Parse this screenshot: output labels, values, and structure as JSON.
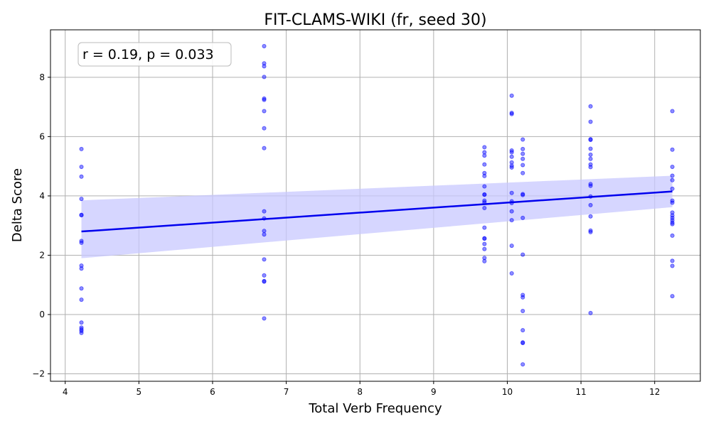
{
  "chart_data": {
    "type": "scatter",
    "title": "FIT-CLAMS-WIKI (fr, seed 30)",
    "xlabel": "Total Verb Frequency",
    "ylabel": "Delta Score",
    "xlim": [
      3.8,
      12.62
    ],
    "ylim": [
      -2.25,
      9.6
    ],
    "x_ticks": [
      4,
      5,
      6,
      7,
      8,
      9,
      10,
      11,
      12
    ],
    "y_ticks": [
      -2,
      0,
      2,
      4,
      6,
      8
    ],
    "grid": true,
    "annotation": "r = 0.19, p = 0.033",
    "annotation_position": "top-left",
    "colors": {
      "points": "#0000ff",
      "regression_line": "#0000ee",
      "confidence_band": "#c8c8ff",
      "grid": "#b0b0b0"
    },
    "regression": {
      "x": [
        4.22,
        12.24
      ],
      "y": [
        2.8,
        4.15
      ],
      "ci_lower": [
        1.9,
        3.62
      ],
      "ci_upper": [
        3.85,
        4.68
      ]
    },
    "points": [
      {
        "x": 4.22,
        "y": 5.58
      },
      {
        "x": 4.22,
        "y": 4.98
      },
      {
        "x": 4.22,
        "y": 4.65
      },
      {
        "x": 4.22,
        "y": 3.9
      },
      {
        "x": 4.22,
        "y": 3.36
      },
      {
        "x": 4.22,
        "y": 3.35
      },
      {
        "x": 4.22,
        "y": 2.48
      },
      {
        "x": 4.22,
        "y": 2.42
      },
      {
        "x": 4.22,
        "y": 1.65
      },
      {
        "x": 4.22,
        "y": 1.55
      },
      {
        "x": 4.22,
        "y": 0.88
      },
      {
        "x": 4.22,
        "y": 0.5
      },
      {
        "x": 4.22,
        "y": -0.27
      },
      {
        "x": 4.22,
        "y": -0.44
      },
      {
        "x": 4.22,
        "y": -0.5
      },
      {
        "x": 4.22,
        "y": -0.55
      },
      {
        "x": 4.22,
        "y": -0.62
      },
      {
        "x": 6.7,
        "y": 9.05
      },
      {
        "x": 6.7,
        "y": 8.47
      },
      {
        "x": 6.7,
        "y": 8.37
      },
      {
        "x": 6.7,
        "y": 8.01
      },
      {
        "x": 6.7,
        "y": 7.28
      },
      {
        "x": 6.7,
        "y": 7.24
      },
      {
        "x": 6.7,
        "y": 6.86
      },
      {
        "x": 6.7,
        "y": 6.28
      },
      {
        "x": 6.7,
        "y": 5.61
      },
      {
        "x": 6.7,
        "y": 3.48
      },
      {
        "x": 6.7,
        "y": 3.24
      },
      {
        "x": 6.7,
        "y": 2.82
      },
      {
        "x": 6.7,
        "y": 2.7
      },
      {
        "x": 6.7,
        "y": 1.86
      },
      {
        "x": 6.7,
        "y": 1.32
      },
      {
        "x": 6.7,
        "y": 1.13
      },
      {
        "x": 6.7,
        "y": 1.11
      },
      {
        "x": 6.7,
        "y": -0.13
      },
      {
        "x": 9.69,
        "y": 5.64
      },
      {
        "x": 9.69,
        "y": 5.47
      },
      {
        "x": 9.69,
        "y": 5.36
      },
      {
        "x": 9.69,
        "y": 5.06
      },
      {
        "x": 9.69,
        "y": 4.77
      },
      {
        "x": 9.69,
        "y": 4.67
      },
      {
        "x": 9.69,
        "y": 4.32
      },
      {
        "x": 9.69,
        "y": 4.05
      },
      {
        "x": 9.69,
        "y": 4.04
      },
      {
        "x": 9.69,
        "y": 3.84
      },
      {
        "x": 9.69,
        "y": 3.78
      },
      {
        "x": 9.69,
        "y": 3.59
      },
      {
        "x": 9.69,
        "y": 2.93
      },
      {
        "x": 9.69,
        "y": 2.57
      },
      {
        "x": 9.69,
        "y": 2.56
      },
      {
        "x": 9.69,
        "y": 2.38
      },
      {
        "x": 9.69,
        "y": 2.21
      },
      {
        "x": 9.69,
        "y": 1.91
      },
      {
        "x": 9.69,
        "y": 1.8
      },
      {
        "x": 10.06,
        "y": 7.38
      },
      {
        "x": 10.06,
        "y": 6.8
      },
      {
        "x": 10.06,
        "y": 6.76
      },
      {
        "x": 10.06,
        "y": 5.53
      },
      {
        "x": 10.06,
        "y": 5.47
      },
      {
        "x": 10.06,
        "y": 5.32
      },
      {
        "x": 10.06,
        "y": 5.13
      },
      {
        "x": 10.06,
        "y": 5.02
      },
      {
        "x": 10.06,
        "y": 4.96
      },
      {
        "x": 10.06,
        "y": 4.1
      },
      {
        "x": 10.06,
        "y": 3.82
      },
      {
        "x": 10.06,
        "y": 3.76
      },
      {
        "x": 10.06,
        "y": 3.48
      },
      {
        "x": 10.06,
        "y": 3.18
      },
      {
        "x": 10.06,
        "y": 2.32
      },
      {
        "x": 10.06,
        "y": 1.39
      },
      {
        "x": 10.21,
        "y": 5.9
      },
      {
        "x": 10.21,
        "y": 5.58
      },
      {
        "x": 10.21,
        "y": 5.42
      },
      {
        "x": 10.21,
        "y": 5.25
      },
      {
        "x": 10.21,
        "y": 5.04
      },
      {
        "x": 10.21,
        "y": 4.77
      },
      {
        "x": 10.21,
        "y": 4.06
      },
      {
        "x": 10.21,
        "y": 4.03
      },
      {
        "x": 10.21,
        "y": 3.26
      },
      {
        "x": 10.21,
        "y": 2.02
      },
      {
        "x": 10.21,
        "y": 0.66
      },
      {
        "x": 10.21,
        "y": 0.58
      },
      {
        "x": 10.21,
        "y": 0.12
      },
      {
        "x": 10.21,
        "y": -0.53
      },
      {
        "x": 10.21,
        "y": -0.94
      },
      {
        "x": 10.21,
        "y": -0.96
      },
      {
        "x": 10.21,
        "y": -1.68
      },
      {
        "x": 11.13,
        "y": 7.02
      },
      {
        "x": 11.13,
        "y": 6.5
      },
      {
        "x": 11.13,
        "y": 5.91
      },
      {
        "x": 11.13,
        "y": 5.89
      },
      {
        "x": 11.13,
        "y": 5.59
      },
      {
        "x": 11.13,
        "y": 5.39
      },
      {
        "x": 11.13,
        "y": 5.25
      },
      {
        "x": 11.13,
        "y": 5.06
      },
      {
        "x": 11.13,
        "y": 4.97
      },
      {
        "x": 11.13,
        "y": 4.4
      },
      {
        "x": 11.13,
        "y": 4.34
      },
      {
        "x": 11.13,
        "y": 3.98
      },
      {
        "x": 11.13,
        "y": 3.69
      },
      {
        "x": 11.13,
        "y": 3.31
      },
      {
        "x": 11.13,
        "y": 2.83
      },
      {
        "x": 11.13,
        "y": 2.78
      },
      {
        "x": 11.13,
        "y": 0.05
      },
      {
        "x": 12.24,
        "y": 6.86
      },
      {
        "x": 12.24,
        "y": 5.56
      },
      {
        "x": 12.24,
        "y": 4.98
      },
      {
        "x": 12.24,
        "y": 4.68
      },
      {
        "x": 12.24,
        "y": 4.53
      },
      {
        "x": 12.24,
        "y": 4.24
      },
      {
        "x": 12.24,
        "y": 3.84
      },
      {
        "x": 12.24,
        "y": 3.77
      },
      {
        "x": 12.24,
        "y": 3.44
      },
      {
        "x": 12.24,
        "y": 3.34
      },
      {
        "x": 12.24,
        "y": 3.26
      },
      {
        "x": 12.24,
        "y": 3.18
      },
      {
        "x": 12.24,
        "y": 3.1
      },
      {
        "x": 12.24,
        "y": 3.05
      },
      {
        "x": 12.24,
        "y": 2.66
      },
      {
        "x": 12.24,
        "y": 1.81
      },
      {
        "x": 12.24,
        "y": 1.64
      },
      {
        "x": 12.24,
        "y": 0.62
      }
    ]
  }
}
